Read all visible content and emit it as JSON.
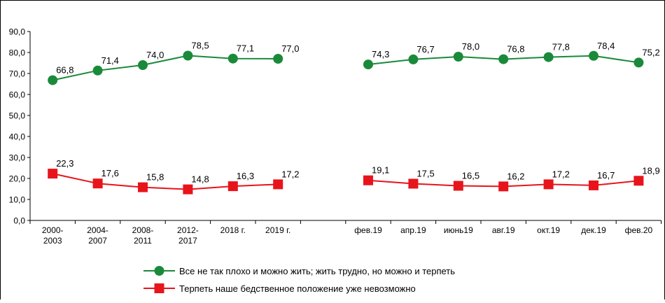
{
  "chart_data": {
    "type": "line",
    "categories": [
      "2000-\n2003",
      "2004-\n2007",
      "2008-\n2011",
      "2012-\n2017",
      "2018 г.",
      "2019 г.",
      null,
      "фев.19",
      "апр.19",
      "июнь19",
      "авг.19",
      "окт.19",
      "дек.19",
      "фев.20"
    ],
    "series": [
      {
        "name": "Все не так плохо и можно жить; жить трудно, но можно и терпеть",
        "color": "#1a8a3a",
        "marker": "circle",
        "values": [
          66.8,
          71.4,
          74.0,
          78.5,
          77.1,
          77.0,
          null,
          74.3,
          76.7,
          78.0,
          76.8,
          77.8,
          78.4,
          75.2
        ],
        "value_labels": [
          "66,8",
          "71,4",
          "74,0",
          "78,5",
          "77,1",
          "77,0",
          null,
          "74,3",
          "76,7",
          "78,0",
          "76,8",
          "77,8",
          "78,4",
          "75,2"
        ]
      },
      {
        "name": "Терпеть наше бедственное положение уже невозможно",
        "color": "#e8141c",
        "marker": "square",
        "values": [
          22.3,
          17.6,
          15.8,
          14.8,
          16.3,
          17.2,
          null,
          19.1,
          17.5,
          16.5,
          16.2,
          17.2,
          16.7,
          18.9
        ],
        "value_labels": [
          "22,3",
          "17,6",
          "15,8",
          "14,8",
          "16,3",
          "17,2",
          null,
          "19,1",
          "17,5",
          "16,5",
          "16,2",
          "17,2",
          "16,7",
          "18,9"
        ]
      }
    ],
    "ylim": [
      0,
      90
    ],
    "yticks": [
      {
        "value": 0,
        "label": "0,0"
      },
      {
        "value": 10,
        "label": "10,0"
      },
      {
        "value": 20,
        "label": "20,0"
      },
      {
        "value": 30,
        "label": "30,0"
      },
      {
        "value": 40,
        "label": "40,0"
      },
      {
        "value": 50,
        "label": "50,0"
      },
      {
        "value": 60,
        "label": "60,0"
      },
      {
        "value": 70,
        "label": "70,0"
      },
      {
        "value": 80,
        "label": "80,0"
      },
      {
        "value": 90,
        "label": "90,0"
      }
    ],
    "legend": "bottom",
    "grid": false
  }
}
